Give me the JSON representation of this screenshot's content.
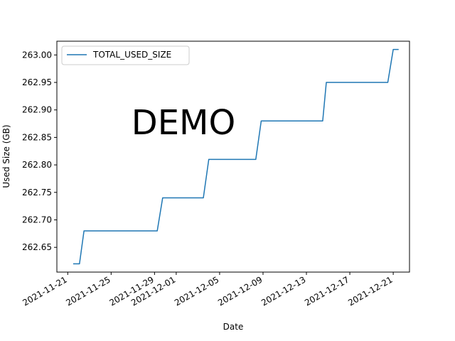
{
  "chart_data": {
    "type": "line",
    "title": "",
    "xlabel": "Date",
    "ylabel": "Used Size (GB)",
    "watermark": "DEMO",
    "legend_position": "top-left",
    "grid": false,
    "xlim": [
      "2021-11-20T00:00",
      "2021-12-22T12:00"
    ],
    "ylim": [
      262.605,
      263.025
    ],
    "x_ticks": [
      "2021-11-21",
      "2021-11-25",
      "2021-11-29",
      "2021-12-01",
      "2021-12-05",
      "2021-12-09",
      "2021-12-13",
      "2021-12-17",
      "2021-12-21"
    ],
    "y_ticks": [
      "262.65",
      "262.70",
      "262.75",
      "262.80",
      "262.85",
      "262.90",
      "262.95",
      "263.00"
    ],
    "color": "#1f77b4",
    "series": [
      {
        "name": "TOTAL_USED_SIZE",
        "x": [
          "2021-11-21T12:00",
          "2021-11-22T02:00",
          "2021-11-22T12:00",
          "2021-11-29T06:00",
          "2021-11-29T18:00",
          "2021-12-03T12:00",
          "2021-12-04T00:00",
          "2021-12-08T08:00",
          "2021-12-08T20:00",
          "2021-12-14T12:00",
          "2021-12-14T20:00",
          "2021-12-20T12:00",
          "2021-12-21T00:00",
          "2021-12-21T12:00"
        ],
        "y": [
          262.62,
          262.62,
          262.68,
          262.68,
          262.74,
          262.74,
          262.81,
          262.81,
          262.88,
          262.88,
          262.95,
          262.95,
          263.01,
          263.01
        ]
      }
    ]
  }
}
